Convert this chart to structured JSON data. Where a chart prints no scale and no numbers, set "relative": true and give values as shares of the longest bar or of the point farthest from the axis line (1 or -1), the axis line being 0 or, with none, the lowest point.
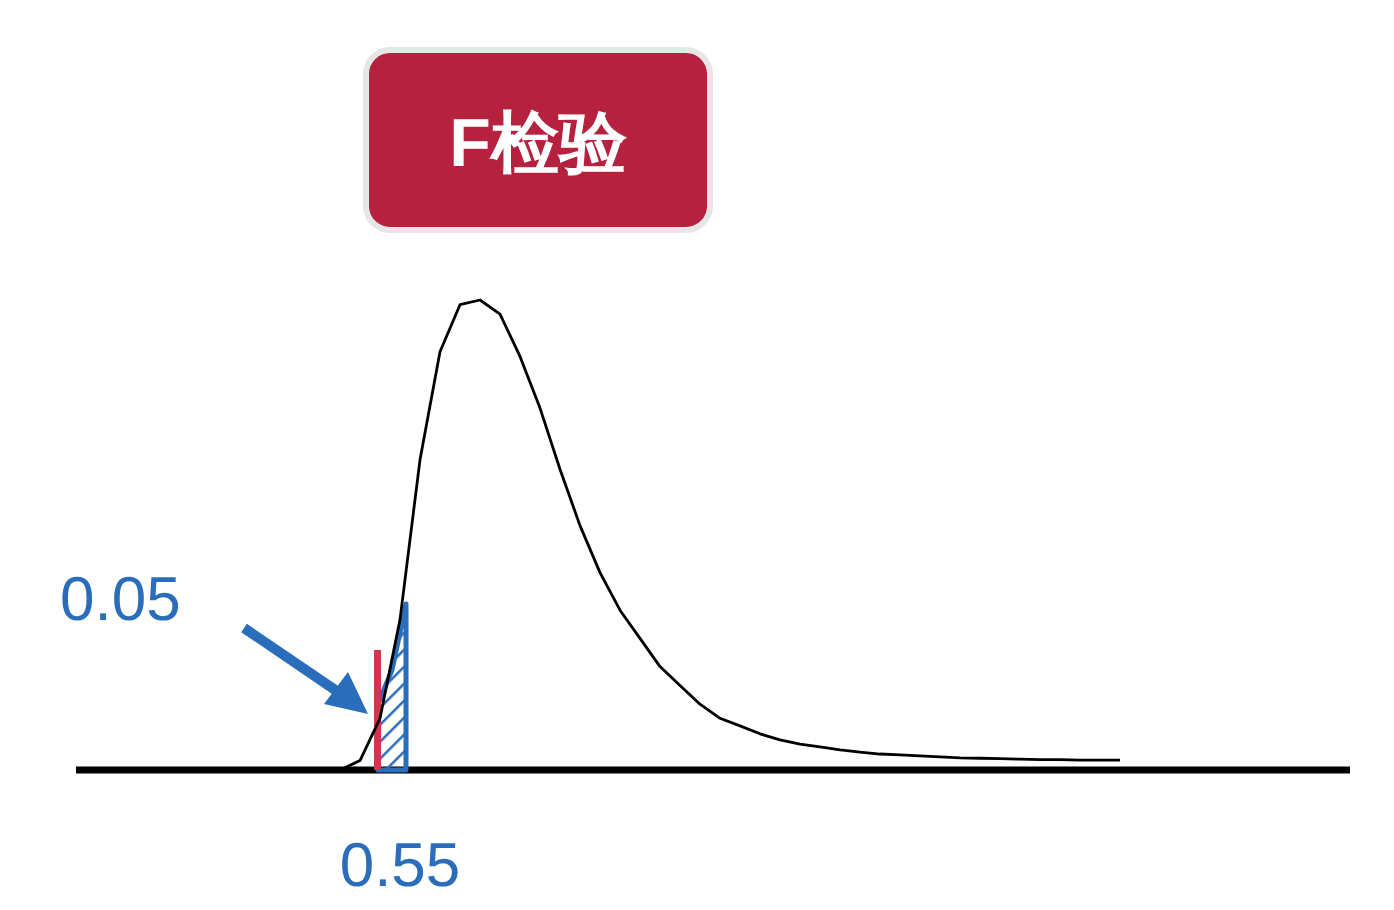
{
  "chart_data": {
    "type": "line",
    "title": "F检验",
    "relative": true,
    "categories": [
      null,
      null,
      null,
      null,
      null,
      null,
      null,
      null,
      null,
      null,
      null,
      null,
      null,
      null,
      null,
      null,
      null,
      null,
      null,
      null,
      null,
      null,
      null,
      null,
      null,
      null,
      null,
      null,
      null,
      null,
      null,
      null,
      null,
      null,
      null,
      null,
      null,
      null,
      null,
      null
    ],
    "series": [
      {
        "color": "#000000",
        "values": [
          0,
          0.02,
          0.11,
          0.32,
          0.66,
          0.89,
          0.99,
          1.0,
          0.97,
          0.88,
          0.77,
          0.64,
          0.52,
          0.42,
          0.34,
          0.28,
          0.22,
          0.18,
          0.14,
          0.11,
          0.094,
          0.077,
          0.064,
          0.055,
          0.049,
          0.043,
          0.038,
          0.034,
          0.032,
          0.03,
          0.028,
          0.026,
          0.025,
          0.024,
          0.023,
          0.022,
          0.022,
          0.021,
          0.021,
          0.021
        ]
      }
    ],
    "annotations": [
      "0.05",
      "0.55"
    ]
  }
}
